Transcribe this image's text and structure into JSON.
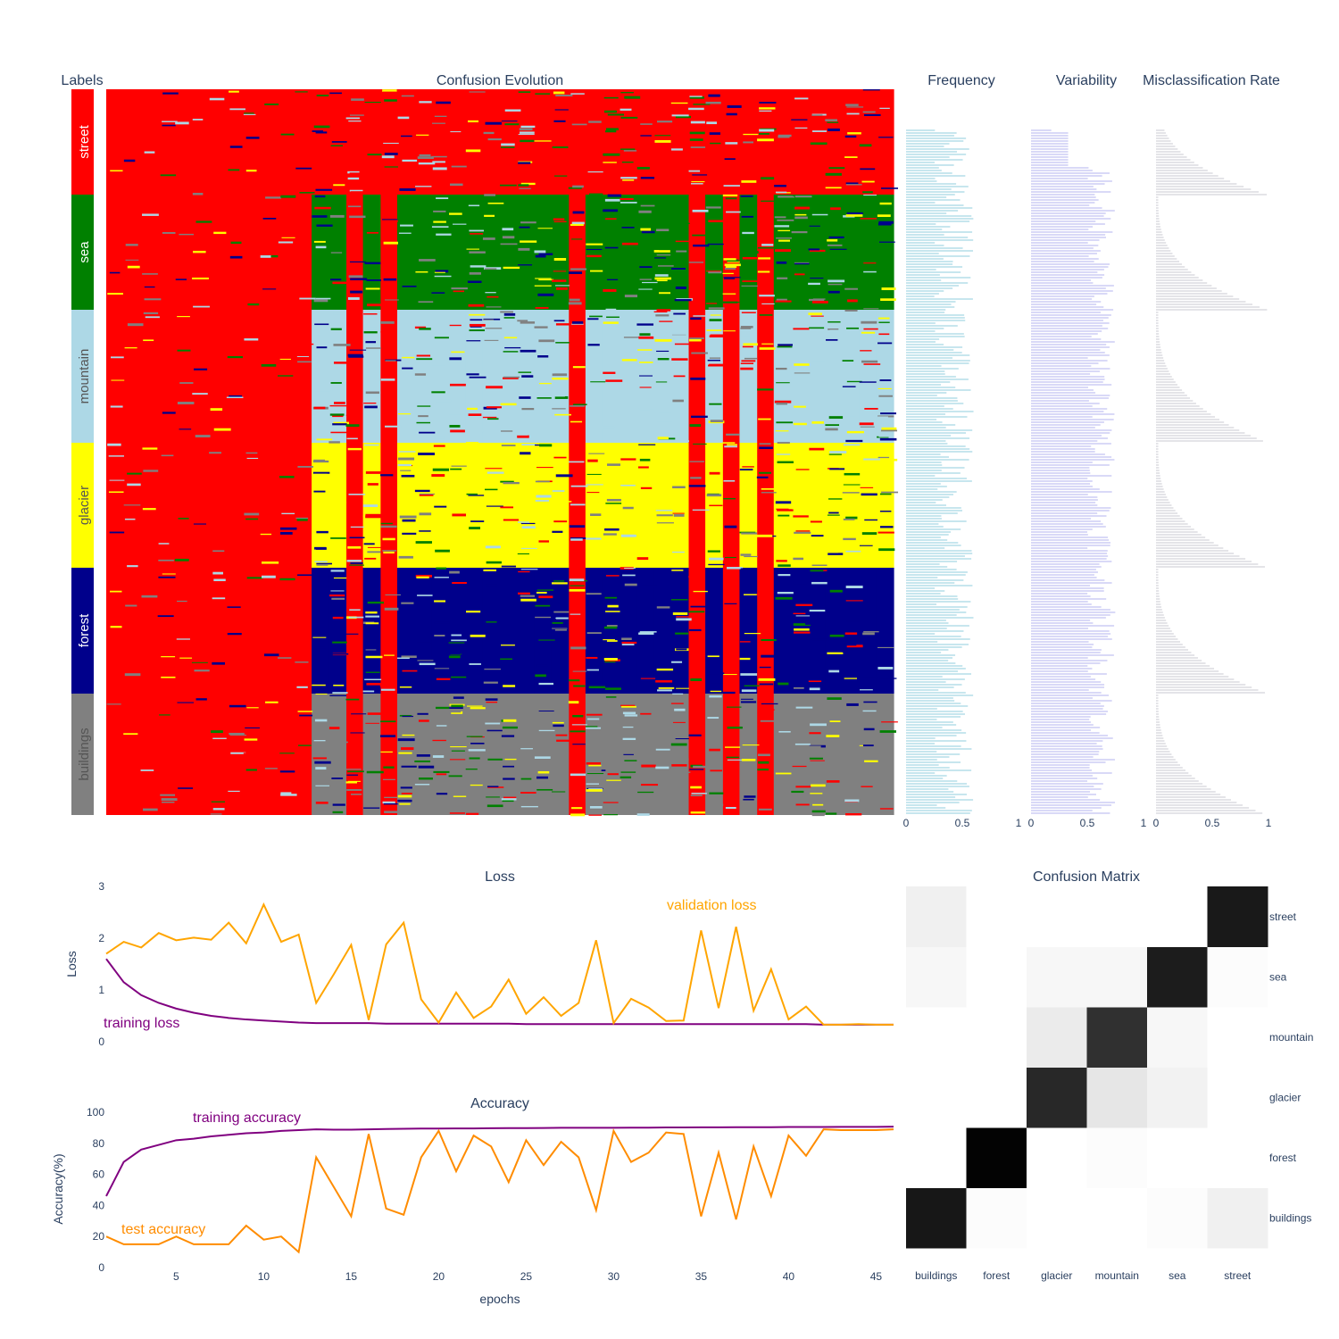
{
  "titles": {
    "labels": "Labels",
    "confusion_evolution": "Confusion Evolution",
    "frequency": "Frequency",
    "variability": "Variability",
    "misclassification": "Misclassification Rate",
    "loss": "Loss",
    "accuracy": "Accuracy",
    "confusion_matrix": "Confusion Matrix"
  },
  "colors": {
    "street": "#ff0000",
    "sea": "#008000",
    "mountain": "#add8e6",
    "glacier": "#ffff00",
    "forest": "#00008b",
    "buildings": "#808080",
    "frequency_bars": "#c7e6ee",
    "variability_bars": "#d9d9f7",
    "misclass_bars": "#e4e4e8",
    "training": "#800080",
    "validation": "#ffa500",
    "test": "#ff8c00"
  },
  "chart_data": [
    {
      "id": "labels",
      "type": "heatmap",
      "title": "Labels",
      "classes": [
        "street",
        "sea",
        "mountain",
        "glacier",
        "forest",
        "buildings"
      ]
    },
    {
      "id": "confusion-evolution",
      "type": "heatmap",
      "title": "Confusion Evolution",
      "classes": [
        "street",
        "sea",
        "mountain",
        "glacier",
        "forest",
        "buildings"
      ],
      "epochs": 46
    },
    {
      "id": "frequency",
      "type": "bar",
      "title": "Frequency",
      "xlim": [
        0,
        1
      ],
      "xticks": [
        "0",
        "0.5",
        "1"
      ]
    },
    {
      "id": "variability",
      "type": "bar",
      "title": "Variability",
      "xlim": [
        0,
        1
      ],
      "xticks": [
        "0",
        "0.5",
        "1"
      ]
    },
    {
      "id": "misclassification-rate",
      "type": "bar",
      "title": "Misclassification Rate",
      "xlim": [
        0,
        1
      ],
      "xticks": [
        "0",
        "0.5",
        "1"
      ]
    },
    {
      "id": "loss",
      "type": "line",
      "title": "Loss",
      "ylabel": "Loss",
      "ylim": [
        0,
        3
      ],
      "yticks": [
        "0",
        "1",
        "2",
        "3"
      ],
      "xlim": [
        1,
        46
      ],
      "series": [
        {
          "name": "training loss",
          "x": [
            1,
            2,
            3,
            4,
            5,
            6,
            7,
            8,
            9,
            10,
            11,
            12,
            13,
            14,
            15,
            16,
            17,
            18,
            19,
            20,
            21,
            22,
            23,
            24,
            25,
            26,
            27,
            28,
            29,
            30,
            31,
            32,
            33,
            34,
            35,
            36,
            37,
            38,
            39,
            40,
            41,
            42,
            43,
            44,
            45,
            46
          ],
          "values": [
            1.6,
            1.15,
            0.9,
            0.75,
            0.64,
            0.56,
            0.5,
            0.46,
            0.43,
            0.41,
            0.39,
            0.37,
            0.36,
            0.36,
            0.36,
            0.36,
            0.35,
            0.35,
            0.35,
            0.35,
            0.35,
            0.35,
            0.35,
            0.35,
            0.34,
            0.34,
            0.34,
            0.34,
            0.34,
            0.34,
            0.34,
            0.34,
            0.34,
            0.34,
            0.34,
            0.34,
            0.34,
            0.34,
            0.34,
            0.34,
            0.34,
            0.33,
            0.33,
            0.33,
            0.33,
            0.33
          ]
        },
        {
          "name": "validation loss",
          "x": [
            1,
            2,
            3,
            4,
            5,
            6,
            7,
            8,
            9,
            10,
            11,
            12,
            13,
            14,
            15,
            16,
            17,
            18,
            19,
            20,
            21,
            22,
            23,
            24,
            25,
            26,
            27,
            28,
            29,
            30,
            31,
            32,
            33,
            34,
            35,
            36,
            37,
            38,
            39,
            40,
            41,
            42,
            43,
            44,
            45,
            46
          ],
          "values": [
            1.7,
            1.93,
            1.82,
            2.1,
            1.96,
            2.01,
            1.97,
            2.3,
            1.9,
            2.65,
            1.93,
            2.07,
            0.75,
            1.3,
            1.87,
            0.42,
            1.88,
            2.3,
            0.82,
            0.37,
            0.95,
            0.46,
            0.68,
            1.2,
            0.54,
            0.86,
            0.5,
            0.75,
            1.96,
            0.36,
            0.83,
            0.66,
            0.4,
            0.41,
            2.15,
            0.65,
            2.22,
            0.6,
            1.4,
            0.43,
            0.68,
            0.33,
            0.33,
            0.34,
            0.33,
            0.33
          ]
        }
      ]
    },
    {
      "id": "accuracy",
      "type": "line",
      "title": "Accuracy",
      "xlabel": "epochs",
      "ylabel": "Accuracy(%)",
      "ylim": [
        0,
        100
      ],
      "yticks": [
        "0",
        "20",
        "40",
        "60",
        "80",
        "100"
      ],
      "xlim": [
        1,
        46
      ],
      "xticks": [
        "5",
        "10",
        "15",
        "20",
        "25",
        "30",
        "35",
        "40",
        "45"
      ],
      "series": [
        {
          "name": "training accuracy",
          "x": [
            1,
            2,
            3,
            4,
            5,
            6,
            7,
            8,
            9,
            10,
            11,
            12,
            13,
            14,
            15,
            16,
            17,
            18,
            19,
            20,
            21,
            22,
            23,
            24,
            25,
            26,
            27,
            28,
            29,
            30,
            31,
            32,
            33,
            34,
            35,
            36,
            37,
            38,
            39,
            40,
            41,
            42,
            43,
            44,
            45,
            46
          ],
          "values": [
            46,
            68,
            76,
            79,
            82,
            83,
            84.5,
            85.5,
            86.5,
            87,
            88,
            88.5,
            89,
            88.8,
            88.8,
            89,
            89.2,
            89.4,
            89.5,
            89.5,
            89.6,
            89.6,
            89.7,
            89.8,
            89.8,
            89.9,
            90,
            90,
            90,
            90,
            90.1,
            90.1,
            90.2,
            90.2,
            90.3,
            90.3,
            90.4,
            90.4,
            90.4,
            90.5,
            90.5,
            90.5,
            90.6,
            90.6,
            90.6,
            90.7
          ]
        },
        {
          "name": "test accuracy",
          "x": [
            1,
            2,
            3,
            4,
            5,
            6,
            7,
            8,
            9,
            10,
            11,
            12,
            13,
            14,
            15,
            16,
            17,
            18,
            19,
            20,
            21,
            22,
            23,
            24,
            25,
            26,
            27,
            28,
            29,
            30,
            31,
            32,
            33,
            34,
            35,
            36,
            37,
            38,
            39,
            40,
            41,
            42,
            43,
            44,
            45,
            46
          ],
          "values": [
            20,
            15,
            15,
            15,
            20,
            15,
            15,
            15,
            27,
            18,
            20,
            10,
            71,
            52,
            33,
            86,
            38,
            34,
            71,
            88,
            62,
            85,
            78,
            55,
            82,
            66,
            81,
            71,
            37,
            88,
            68,
            74,
            87,
            86,
            33,
            74,
            31,
            78,
            46,
            85,
            72,
            89,
            88.5,
            88.5,
            88.5,
            89
          ]
        }
      ]
    },
    {
      "id": "confusion-matrix",
      "type": "heatmap",
      "title": "Confusion Matrix",
      "x": [
        "buildings",
        "forest",
        "glacier",
        "mountain",
        "sea",
        "street"
      ],
      "y": [
        "buildings",
        "forest",
        "glacier",
        "mountain",
        "sea",
        "street"
      ],
      "z": [
        [
          0.92,
          0.01,
          0.0,
          0.0,
          0.01,
          0.06
        ],
        [
          0.0,
          1.0,
          0.0,
          0.01,
          0.0,
          0.0
        ],
        [
          0.0,
          0.0,
          0.85,
          0.1,
          0.05,
          0.0
        ],
        [
          0.0,
          0.0,
          0.08,
          0.82,
          0.03,
          0.0
        ],
        [
          0.03,
          0.0,
          0.03,
          0.03,
          0.9,
          0.01
        ],
        [
          0.06,
          0.0,
          0.0,
          0.0,
          0.0,
          0.91
        ]
      ]
    }
  ]
}
